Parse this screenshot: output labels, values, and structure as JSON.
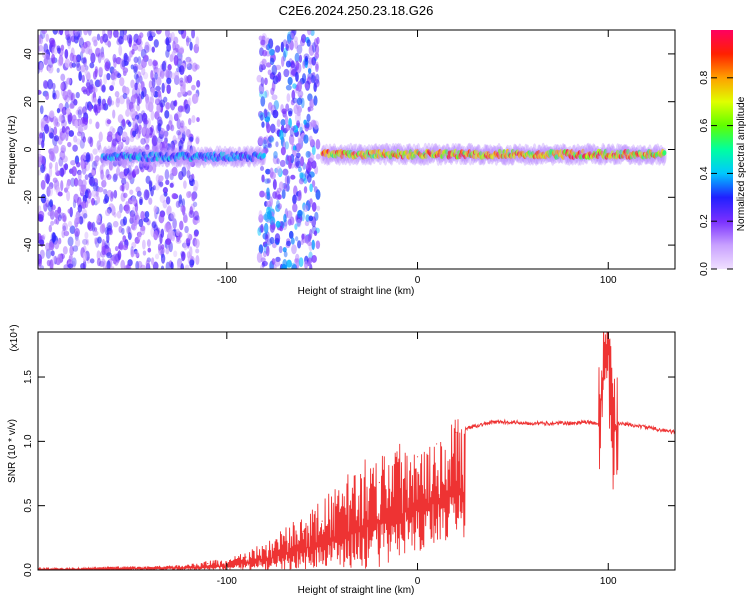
{
  "figure_title": "C2E6.2024.250.23.18.G26",
  "colors": {
    "snr_line": "#ee3333",
    "colorbar_stops": [
      "#f0e0ff",
      "#c8a0ff",
      "#7a30ff",
      "#2020ff",
      "#00c8ff",
      "#00ffa0",
      "#60ff00",
      "#e0ff00",
      "#ffa000",
      "#ff2000",
      "#ff0060"
    ]
  },
  "chart_data": [
    {
      "type": "heatmap",
      "title": "",
      "xlabel": "Height of straight line (km)",
      "ylabel": "Frequency (Hz)",
      "xlim": [
        -199,
        135
      ],
      "ylim": [
        -50,
        50
      ],
      "xticks": [
        "-100",
        "0",
        "100"
      ],
      "yticks": [
        "-40",
        "-20",
        "0",
        "20",
        "40"
      ],
      "colorbar": {
        "label": "Normalized spectral amplitude",
        "range": [
          0,
          1
        ],
        "ticks": [
          "0.0",
          "0.2",
          "0.4",
          "0.6",
          "0.8"
        ]
      },
      "features": [
        {
          "x_range": [
            -199,
            -115
          ],
          "description": "broadband noise",
          "level": 0.15
        },
        {
          "x_range": [
            -83,
            -52
          ],
          "description": "broadband noise",
          "level": 0.2
        },
        {
          "x_range": [
            -165,
            -80
          ],
          "center_freq_hz": -3,
          "level": 0.45
        },
        {
          "x_range": [
            -50,
            130
          ],
          "center_freq_hz": -2,
          "level": 0.95
        }
      ]
    },
    {
      "type": "line",
      "title": "",
      "xlabel": "Height of straight line (km)",
      "ylabel": "SNR (10 * v/v)",
      "y_multiplier": "(x10⁴)",
      "xlim": [
        -199,
        135
      ],
      "ylim": [
        0,
        1.85
      ],
      "xticks": [
        "-100",
        "0",
        "100"
      ],
      "yticks": [
        "0.0",
        "0.5",
        "1.0",
        "1.5"
      ],
      "series": [
        {
          "x": [
            -199,
            -180,
            -160,
            -140,
            -120,
            -110,
            -100,
            -90,
            -80,
            -70,
            -60,
            -50,
            -40,
            -30,
            -20,
            -10,
            0,
            10,
            20,
            30,
            40,
            50,
            60,
            70,
            80,
            90,
            95,
            98,
            100,
            102,
            105,
            110,
            120,
            135
          ],
          "y": [
            0.01,
            0.01,
            0.02,
            0.02,
            0.03,
            0.05,
            0.06,
            0.1,
            0.15,
            0.22,
            0.3,
            0.38,
            0.48,
            0.58,
            0.68,
            0.78,
            0.88,
            0.98,
            1.07,
            1.12,
            1.15,
            1.15,
            1.14,
            1.14,
            1.14,
            1.15,
            1.13,
            1.6,
            1.83,
            1.05,
            1.14,
            1.13,
            1.11,
            1.07
          ]
        }
      ]
    }
  ]
}
